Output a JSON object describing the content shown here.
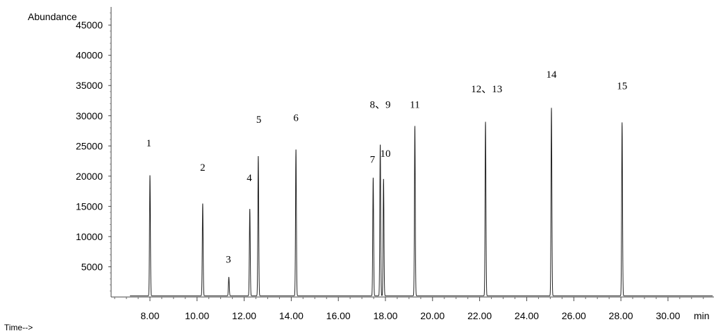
{
  "chart_data": {
    "type": "line",
    "ylabel": "Abundance",
    "xlabel": "Time-->",
    "x_unit": "min",
    "xlim": [
      6.35,
      31.95
    ],
    "ylim": [
      0,
      48000
    ],
    "x_ticks": [
      "8.00",
      "10.00",
      "12.00",
      "14.00",
      "16.00",
      "18.00",
      "20.00",
      "22.00",
      "24.00",
      "26.00",
      "28.00",
      "30.00"
    ],
    "y_ticks": [
      "5000",
      "10000",
      "15000",
      "20000",
      "25000",
      "30000",
      "35000",
      "40000",
      "45000"
    ],
    "baseline": 200,
    "peaks": [
      {
        "x": 8.0,
        "y": 20200
      },
      {
        "x": 10.24,
        "y": 15500
      },
      {
        "x": 11.35,
        "y": 3300
      },
      {
        "x": 12.24,
        "y": 14600
      },
      {
        "x": 12.6,
        "y": 23400
      },
      {
        "x": 14.2,
        "y": 24500
      },
      {
        "x": 17.48,
        "y": 19800
      },
      {
        "x": 17.78,
        "y": 25300
      },
      {
        "x": 17.92,
        "y": 19600
      },
      {
        "x": 19.25,
        "y": 28300
      },
      {
        "x": 22.25,
        "y": 29000
      },
      {
        "x": 25.05,
        "y": 31300
      },
      {
        "x": 28.05,
        "y": 28900
      }
    ],
    "peak_labels": [
      {
        "text": "1",
        "x": 7.95,
        "y": 24900
      },
      {
        "text": "2",
        "x": 10.24,
        "y": 20900
      },
      {
        "text": "3",
        "x": 11.33,
        "y": 5700
      },
      {
        "text": "4",
        "x": 12.22,
        "y": 19200
      },
      {
        "text": "5",
        "x": 12.62,
        "y": 28800
      },
      {
        "text": "6",
        "x": 14.2,
        "y": 29100
      },
      {
        "text": "7",
        "x": 17.45,
        "y": 22200
      },
      {
        "text": "8、9",
        "x": 17.78,
        "y": 31300
      },
      {
        "text": "10",
        "x": 18.0,
        "y": 23200
      },
      {
        "text": "11",
        "x": 19.25,
        "y": 31300
      },
      {
        "text": "12、13",
        "x": 22.3,
        "y": 33900
      },
      {
        "text": "14",
        "x": 25.05,
        "y": 36300
      },
      {
        "text": "15",
        "x": 28.05,
        "y": 34400
      }
    ]
  }
}
